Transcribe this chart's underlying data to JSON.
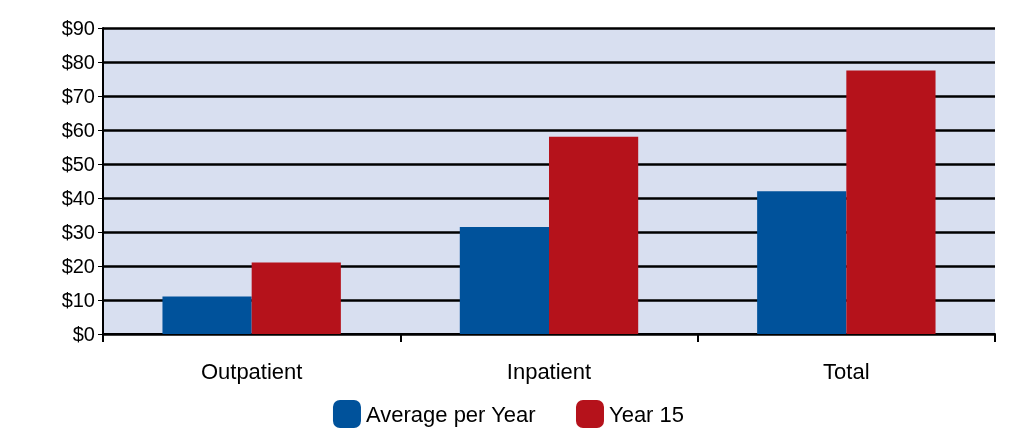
{
  "chart_data": {
    "type": "bar",
    "categories": [
      "Outpatient",
      "Inpatient",
      "Total"
    ],
    "series": [
      {
        "name": "Average per Year",
        "color": "#00529b",
        "values": [
          11,
          31.5,
          42
        ]
      },
      {
        "name": "Year 15",
        "color": "#b5121b",
        "values": [
          21,
          58,
          77.5
        ]
      }
    ],
    "ylim": [
      0,
      90
    ],
    "yticks": [
      {
        "value": 0,
        "label": "$0"
      },
      {
        "value": 10,
        "label": "$10"
      },
      {
        "value": 20,
        "label": "$20"
      },
      {
        "value": 30,
        "label": "$30"
      },
      {
        "value": 40,
        "label": "$40"
      },
      {
        "value": 50,
        "label": "$50"
      },
      {
        "value": 60,
        "label": "$60"
      },
      {
        "value": 70,
        "label": "$70"
      },
      {
        "value": 80,
        "label": "$80"
      },
      {
        "value": 90,
        "label": "$90"
      }
    ],
    "grid": "y",
    "legend": "bottom"
  }
}
